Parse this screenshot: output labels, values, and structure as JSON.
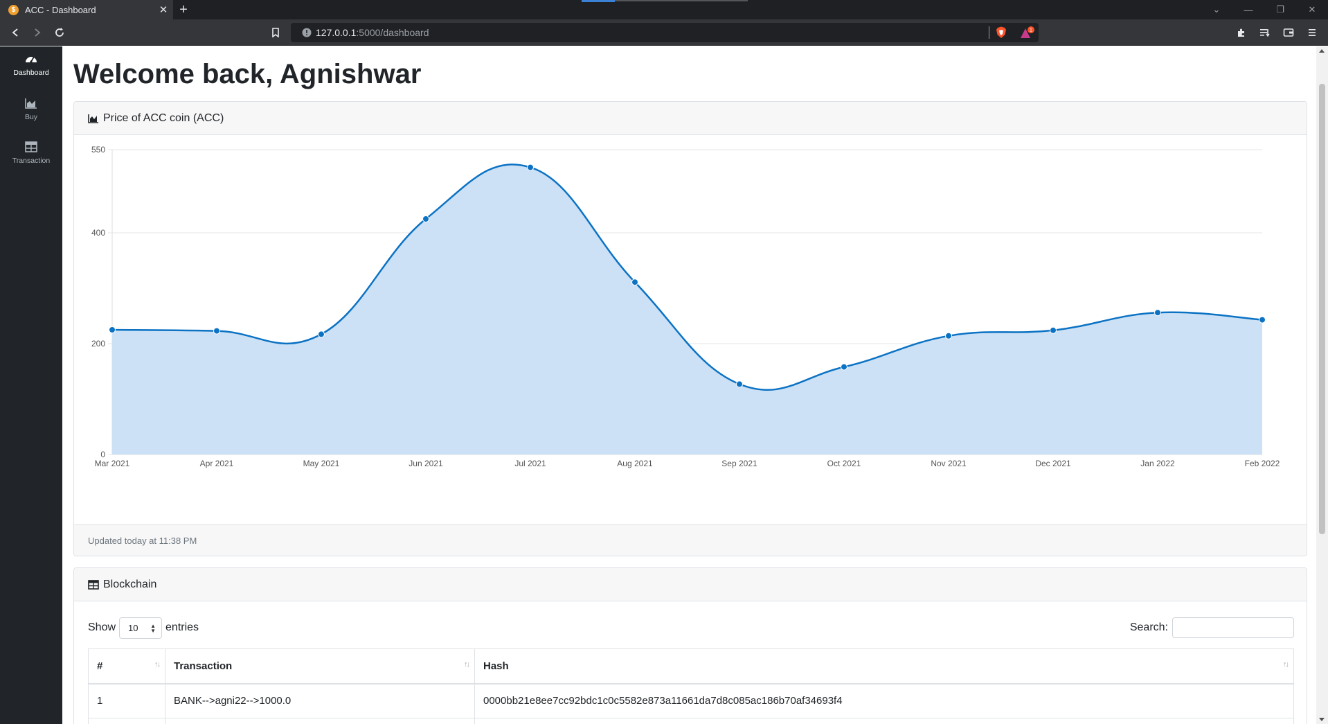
{
  "browser": {
    "tab_title": "ACC - Dashboard",
    "favicon_glyph": "$",
    "new_tab_label": "+",
    "url_host": "127.0.0.1",
    "url_path": ":5000/dashboard",
    "reward_count": "1"
  },
  "sidebar": {
    "items": [
      {
        "label": "Dashboard",
        "icon": "tachometer-icon",
        "active": true
      },
      {
        "label": "Buy",
        "icon": "area-chart-icon",
        "active": false
      },
      {
        "label": "Transaction",
        "icon": "table-icon",
        "active": false
      }
    ]
  },
  "main": {
    "welcome": "Welcome back, Agnishwar"
  },
  "price_card": {
    "title": "Price of ACC coin (ACC)",
    "footer": "Updated today at 11:38 PM"
  },
  "chart_data": {
    "type": "area",
    "title": "Price of ACC coin (ACC)",
    "categories": [
      "Mar 2021",
      "Apr 2021",
      "May 2021",
      "Jun 2021",
      "Jul 2021",
      "Aug 2021",
      "Sep 2021",
      "Oct 2021",
      "Nov 2021",
      "Dec 2021",
      "Jan 2022",
      "Feb 2022"
    ],
    "values": [
      225,
      223,
      217,
      425,
      518,
      311,
      127,
      158,
      214,
      224,
      256,
      243
    ],
    "yticks": [
      0,
      200,
      400,
      550
    ],
    "ylim": [
      0,
      550
    ],
    "grid": true,
    "line_color": "#0b72c4",
    "fill_color": "#cce1f5"
  },
  "blockchain_card": {
    "title": "Blockchain",
    "show_label": "Show",
    "entries_value": "10",
    "entries_label": "entries",
    "search_label": "Search:",
    "search_value": "",
    "columns": [
      "#",
      "Transaction",
      "Hash"
    ],
    "rows": [
      [
        "1",
        "BANK-->agni22-->1000.0",
        "0000bb21e8ee7cc92bdc1c0c5582e873a11661da7d8c085ac186b70af34693f4"
      ]
    ]
  }
}
